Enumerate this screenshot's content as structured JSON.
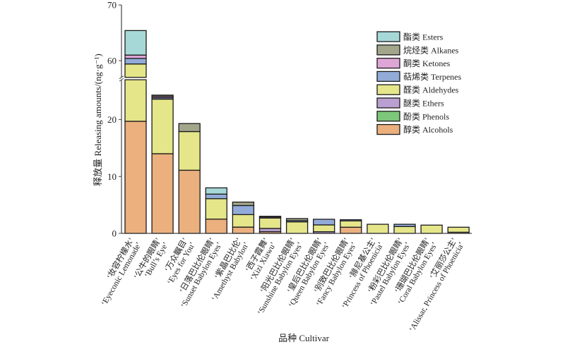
{
  "chart_data": {
    "type": "bar",
    "stacked": true,
    "title": "",
    "xlabel": "品种 Cultivar",
    "ylabel": "释放量 Releasing amounts/(ng·g⁻¹)",
    "ylim": [
      0,
      70
    ],
    "y_axis_break": [
      27,
      57
    ],
    "yticks": [
      0,
      10,
      20,
      60,
      70
    ],
    "grid": false,
    "legend_position": "top-right",
    "categories": [
      {
        "zh": "‘妆容柠檬水’",
        "en": "‘Eyeconic Lemonade’"
      },
      {
        "zh": "‘公牛的眼睛’",
        "en": "‘Bull’s Eye’"
      },
      {
        "zh": "‘万众瞩目’",
        "en": "‘Eyes for You’"
      },
      {
        "zh": "‘日落巴比伦眼睛’",
        "en": "‘Sunset Babylon Eyes’"
      },
      {
        "zh": "‘紫晶巴比伦’",
        "en": "‘Amethyst Babylon’"
      },
      {
        "zh": "‘西子霞舞’",
        "en": "‘Xizi Xiawu’"
      },
      {
        "zh": "‘阳光巴比伦眼睛’",
        "en": "‘Sunshine Babylon Eyes’"
      },
      {
        "zh": "‘皇后巴比伦眼睛’",
        "en": "‘Queen Babylon Eyes’"
      },
      {
        "zh": "‘别致巴比伦眼睛’",
        "en": "‘Fancy Babylon Eyes’"
      },
      {
        "zh": "‘腓尼基公主’",
        "en": "‘Princess of Phoenicia’"
      },
      {
        "zh": "‘粉彩巴比伦眼睛’",
        "en": "‘Pastel Babylon Eyes’"
      },
      {
        "zh": "‘珊瑚巴比伦眼睛’",
        "en": "‘Coral Babylon Eyes’"
      },
      {
        "zh": "‘艾丽莎公主’",
        "en": "‘Alissar, Princess of Phoenicia’"
      }
    ],
    "series": [
      {
        "name": "醇类 Alcohols",
        "color": "#ebb07e",
        "values": [
          19.7,
          14.0,
          11.1,
          2.5,
          1.1,
          0.3,
          0,
          0,
          1.08,
          0,
          0,
          0,
          0.2
        ]
      },
      {
        "name": "酚类 Phenols",
        "color": "#7cc77a",
        "values": [
          0,
          0,
          0,
          0,
          0,
          0,
          0,
          0,
          0,
          0,
          0,
          0,
          0
        ]
      },
      {
        "name": "醚类 Ethers",
        "color": "#b9a0d0",
        "values": [
          0,
          0,
          0,
          0,
          0,
          0.57,
          0,
          0.29,
          0,
          0,
          0,
          0,
          0
        ]
      },
      {
        "name": "醛类 Aldehydes",
        "color": "#e5e68a",
        "values": [
          39.7,
          9.6,
          6.8,
          3.6,
          2.2,
          1.83,
          2.03,
          1.2,
          1.11,
          1.6,
          1.2,
          1.45,
          0.88
        ]
      },
      {
        "name": "萜烯类 Terpenes",
        "color": "#92abd8",
        "values": [
          1.0,
          0.25,
          0,
          0.8,
          1.6,
          0,
          0.22,
          0.99,
          0.21,
          0,
          0.4,
          0,
          0
        ]
      },
      {
        "name": "酮类 Ketones",
        "color": "#dea6d6",
        "values": [
          0.6,
          0.25,
          0,
          0,
          0,
          0.2,
          0,
          0,
          0,
          0,
          0,
          0,
          0
        ]
      },
      {
        "name": "烷烃类 Alkanes",
        "color": "#a3a68a",
        "values": [
          0,
          0.2,
          1.4,
          0,
          0.6,
          0.1,
          0.35,
          0,
          0,
          0,
          0,
          0,
          0
        ]
      },
      {
        "name": "酯类 Esters",
        "color": "#a7d8d8",
        "values": [
          4.4,
          0,
          0,
          1.1,
          0,
          0,
          0,
          0,
          0,
          0,
          0,
          0,
          0
        ]
      }
    ]
  }
}
